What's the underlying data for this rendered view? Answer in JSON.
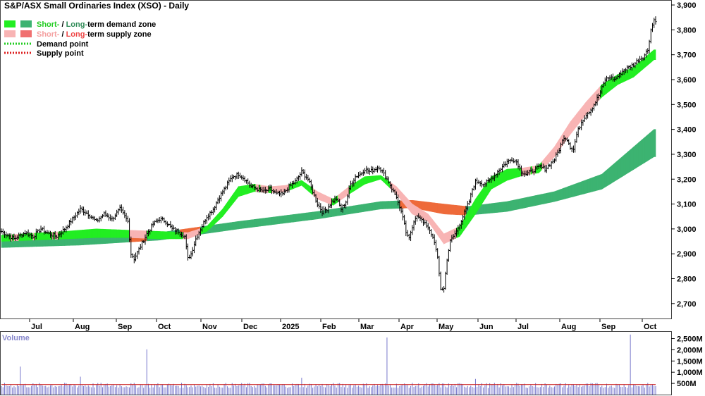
{
  "title": "S&P/ASX Small Ordinaries Index (XSO) - Daily",
  "colors": {
    "short_demand": "#22ee22",
    "long_demand": "#3cb371",
    "short_supply": "#f8b4b4",
    "long_supply": "#ee6a3a",
    "demand_point": "#22cc22",
    "supply_point": "#dd2222",
    "volume_bar": "#7777cc",
    "volume_avg": "#cc2222"
  },
  "legend": [
    {
      "short": "Short-",
      "sep": " / ",
      "long": "Long-",
      "rest": "term demand zone",
      "short_color": "#22ee22",
      "long_color": "#3cb371",
      "kind": "zone"
    },
    {
      "short": "Short-",
      "sep": " / ",
      "long": "Long-",
      "rest": "term supply zone",
      "short_color": "#f8b4b4",
      "long_color": "#f07070",
      "kind": "zone"
    },
    {
      "label": "Demand point",
      "color": "#22cc22",
      "kind": "dotted"
    },
    {
      "label": "Supply point",
      "color": "#dd2222",
      "kind": "dotted"
    }
  ],
  "chart_data": {
    "type": "line",
    "subtype": "ohlc-bar",
    "title": "S&P/ASX Small Ordinaries Index (XSO) - Daily",
    "x_ticks": [
      "Jul",
      "Aug",
      "Sep",
      "Oct",
      "Nov",
      "Dec",
      "2025",
      "Feb",
      "Mar",
      "Apr",
      "May",
      "Jun",
      "Jul",
      "Aug",
      "Sep",
      "Oct"
    ],
    "y_ticks": [
      2700,
      2800,
      2900,
      3000,
      3100,
      3200,
      3300,
      3400,
      3500,
      3600,
      3700,
      3800,
      3900
    ],
    "y_tick_labels": [
      "2,700",
      "2,800",
      "2,900",
      "3,000",
      "3,100",
      "3,200",
      "3,300",
      "3,400",
      "3,500",
      "3,600",
      "3,700",
      "3,800",
      "3,900"
    ],
    "ylim": [
      2640,
      3920
    ],
    "price_points": [
      [
        0,
        2990
      ],
      [
        8,
        2960
      ],
      [
        15,
        2985
      ],
      [
        20,
        2970
      ],
      [
        25,
        3000
      ],
      [
        30,
        2980
      ],
      [
        35,
        2970
      ],
      [
        40,
        3000
      ],
      [
        45,
        3040
      ],
      [
        50,
        3080
      ],
      [
        55,
        3060
      ],
      [
        60,
        3030
      ],
      [
        65,
        3060
      ],
      [
        70,
        3040
      ],
      [
        75,
        3080
      ],
      [
        80,
        3030
      ],
      [
        82,
        2900
      ],
      [
        84,
        2880
      ],
      [
        88,
        2930
      ],
      [
        92,
        2980
      ],
      [
        96,
        3020
      ],
      [
        100,
        3040
      ],
      [
        104,
        3030
      ],
      [
        108,
        3000
      ],
      [
        112,
        2990
      ],
      [
        116,
        2970
      ],
      [
        118,
        2880
      ],
      [
        120,
        2900
      ],
      [
        123,
        2960
      ],
      [
        126,
        3000
      ],
      [
        130,
        3050
      ],
      [
        134,
        3080
      ],
      [
        138,
        3130
      ],
      [
        142,
        3170
      ],
      [
        146,
        3210
      ],
      [
        150,
        3220
      ],
      [
        154,
        3200
      ],
      [
        158,
        3170
      ],
      [
        162,
        3160
      ],
      [
        166,
        3150
      ],
      [
        170,
        3160
      ],
      [
        174,
        3140
      ],
      [
        178,
        3140
      ],
      [
        182,
        3170
      ],
      [
        186,
        3190
      ],
      [
        190,
        3230
      ],
      [
        194,
        3200
      ],
      [
        197,
        3150
      ],
      [
        200,
        3100
      ],
      [
        203,
        3070
      ],
      [
        206,
        3080
      ],
      [
        209,
        3110
      ],
      [
        212,
        3120
      ],
      [
        215,
        3080
      ],
      [
        218,
        3110
      ],
      [
        221,
        3180
      ],
      [
        224,
        3210
      ],
      [
        227,
        3220
      ],
      [
        230,
        3240
      ],
      [
        233,
        3230
      ],
      [
        236,
        3240
      ],
      [
        239,
        3250
      ],
      [
        242,
        3220
      ],
      [
        245,
        3190
      ],
      [
        248,
        3150
      ],
      [
        250,
        3130
      ],
      [
        252,
        3080
      ],
      [
        254,
        3050
      ],
      [
        256,
        2980
      ],
      [
        258,
        2970
      ],
      [
        260,
        3010
      ],
      [
        262,
        3040
      ],
      [
        264,
        3050
      ],
      [
        266,
        3040
      ],
      [
        268,
        3020
      ],
      [
        270,
        3000
      ],
      [
        272,
        2980
      ],
      [
        274,
        2950
      ],
      [
        276,
        2880
      ],
      [
        278,
        2760
      ],
      [
        280,
        2760
      ],
      [
        282,
        2880
      ],
      [
        284,
        2950
      ],
      [
        286,
        2970
      ],
      [
        288,
        2990
      ],
      [
        290,
        3020
      ],
      [
        292,
        3050
      ],
      [
        294,
        3080
      ],
      [
        296,
        3110
      ],
      [
        298,
        3160
      ],
      [
        300,
        3190
      ],
      [
        302,
        3190
      ],
      [
        305,
        3180
      ],
      [
        308,
        3190
      ],
      [
        311,
        3210
      ],
      [
        314,
        3230
      ],
      [
        317,
        3250
      ],
      [
        320,
        3270
      ],
      [
        323,
        3280
      ],
      [
        326,
        3270
      ],
      [
        329,
        3230
      ],
      [
        332,
        3220
      ],
      [
        335,
        3230
      ],
      [
        338,
        3240
      ],
      [
        341,
        3250
      ],
      [
        344,
        3240
      ],
      [
        347,
        3260
      ],
      [
        350,
        3280
      ],
      [
        353,
        3320
      ],
      [
        356,
        3370
      ],
      [
        358,
        3360
      ],
      [
        360,
        3330
      ],
      [
        362,
        3320
      ],
      [
        364,
        3380
      ],
      [
        367,
        3430
      ],
      [
        370,
        3460
      ],
      [
        373,
        3480
      ],
      [
        376,
        3510
      ],
      [
        379,
        3550
      ],
      [
        382,
        3600
      ],
      [
        385,
        3610
      ],
      [
        388,
        3600
      ],
      [
        391,
        3620
      ],
      [
        394,
        3640
      ],
      [
        397,
        3650
      ],
      [
        400,
        3660
      ],
      [
        403,
        3680
      ],
      [
        406,
        3690
      ],
      [
        409,
        3720
      ],
      [
        411,
        3800
      ],
      [
        413,
        3840
      ]
    ],
    "short_term_band": [
      [
        0,
        2950,
        2975
      ],
      [
        40,
        2960,
        2990
      ],
      [
        60,
        2965,
        3000
      ],
      [
        80,
        2965,
        2995
      ],
      [
        100,
        2960,
        2990
      ],
      [
        118,
        2960,
        2985
      ],
      [
        130,
        2990,
        3010
      ],
      [
        140,
        3050,
        3080
      ],
      [
        150,
        3130,
        3170
      ],
      [
        160,
        3150,
        3180
      ],
      [
        170,
        3145,
        3170
      ],
      [
        180,
        3150,
        3175
      ],
      [
        190,
        3175,
        3195
      ],
      [
        200,
        3120,
        3150
      ],
      [
        210,
        3095,
        3120
      ],
      [
        220,
        3140,
        3170
      ],
      [
        230,
        3180,
        3210
      ],
      [
        240,
        3200,
        3215
      ],
      [
        250,
        3140,
        3170
      ],
      [
        260,
        3060,
        3100
      ],
      [
        270,
        3030,
        3060
      ],
      [
        280,
        2940,
        2980
      ],
      [
        290,
        2970,
        3010
      ],
      [
        300,
        3060,
        3120
      ],
      [
        310,
        3160,
        3210
      ],
      [
        320,
        3195,
        3240
      ],
      [
        330,
        3215,
        3245
      ],
      [
        340,
        3225,
        3255
      ],
      [
        350,
        3290,
        3330
      ],
      [
        360,
        3380,
        3430
      ],
      [
        370,
        3460,
        3510
      ],
      [
        380,
        3530,
        3580
      ],
      [
        390,
        3580,
        3620
      ],
      [
        400,
        3610,
        3650
      ],
      [
        413,
        3680,
        3720
      ]
    ],
    "long_term_band": [
      [
        0,
        2925,
        2950
      ],
      [
        50,
        2935,
        2965
      ],
      [
        100,
        2955,
        2985
      ],
      [
        150,
        3000,
        3030
      ],
      [
        200,
        3040,
        3070
      ],
      [
        240,
        3080,
        3110
      ],
      [
        260,
        3085,
        3115
      ],
      [
        280,
        3060,
        3100
      ],
      [
        295,
        3055,
        3090
      ],
      [
        320,
        3070,
        3110
      ],
      [
        350,
        3110,
        3150
      ],
      [
        380,
        3160,
        3220
      ],
      [
        413,
        3290,
        3400
      ]
    ],
    "volume": {
      "ylim": [
        0,
        2800
      ],
      "y_ticks": [
        500,
        1000,
        1500,
        2000,
        2500
      ],
      "y_tick_labels": [
        "500M",
        "1,000M",
        "1,500M",
        "2,000M",
        "2,500M"
      ],
      "baseline": 420,
      "average": 450,
      "spikes": [
        [
          12,
          1250
        ],
        [
          92,
          2020
        ],
        [
          244,
          2550
        ],
        [
          398,
          2680
        ],
        [
          50,
          800
        ],
        [
          190,
          750
        ],
        [
          300,
          700
        ]
      ]
    }
  },
  "volume_panel": {
    "title": "Volume"
  }
}
